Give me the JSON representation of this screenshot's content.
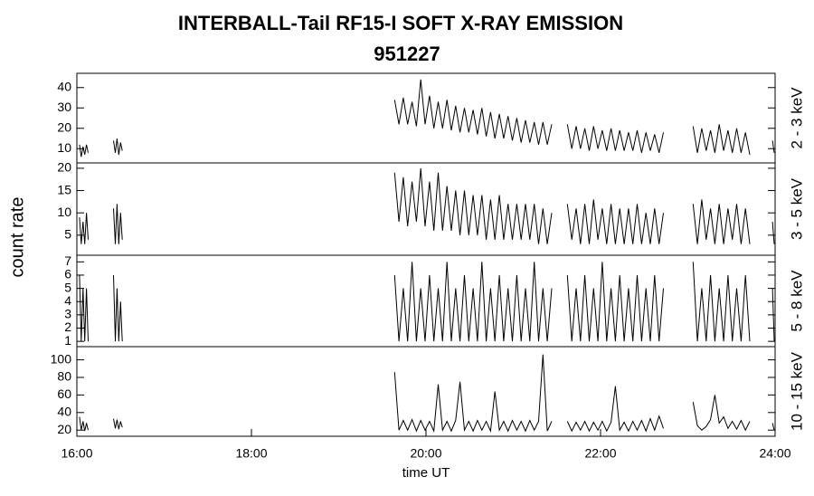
{
  "chart_data": {
    "type": "line",
    "title": "INTERBALL-Tail RF15-I SOFT X-RAY EMISSION",
    "subtitle": "951227",
    "xlabel": "time UT",
    "ylabel": "count rate",
    "color": "#000000",
    "xlim": [
      16,
      24
    ],
    "xticks": [
      {
        "value": 16,
        "label": "16:00"
      },
      {
        "value": 18,
        "label": "18:00"
      },
      {
        "value": 20,
        "label": "20:00"
      },
      {
        "value": 22,
        "label": "22:00"
      },
      {
        "value": 24,
        "label": "24:00"
      }
    ],
    "x": [
      16.03,
      16.05,
      16.07,
      16.09,
      16.11,
      16.13,
      16.3,
      16.42,
      16.44,
      16.46,
      16.48,
      16.5,
      16.52,
      18,
      19.64,
      19.69,
      19.74,
      19.79,
      19.84,
      19.89,
      19.94,
      19.99,
      20.04,
      20.09,
      20.14,
      20.19,
      20.24,
      20.29,
      20.34,
      20.39,
      20.44,
      20.49,
      20.54,
      20.59,
      20.64,
      20.69,
      20.74,
      20.79,
      20.84,
      20.89,
      20.94,
      20.99,
      21.04,
      21.09,
      21.14,
      21.19,
      21.24,
      21.29,
      21.34,
      21.39,
      21.44,
      21.54,
      21.62,
      21.67,
      21.72,
      21.77,
      21.82,
      21.87,
      21.92,
      21.97,
      22.02,
      22.07,
      22.12,
      22.17,
      22.22,
      22.27,
      22.32,
      22.37,
      22.42,
      22.47,
      22.52,
      22.57,
      22.62,
      22.67,
      22.72,
      22.9,
      23.06,
      23.11,
      23.16,
      23.21,
      23.26,
      23.31,
      23.36,
      23.41,
      23.46,
      23.51,
      23.56,
      23.61,
      23.66,
      23.71,
      23.85,
      23.97,
      23.99
    ],
    "panels": [
      {
        "name": "2 - 3 keV",
        "ylim": [
          3,
          47
        ],
        "yticks": [
          10,
          20,
          30,
          40
        ],
        "values": [
          12,
          6,
          11,
          7,
          12,
          8,
          null,
          14,
          8,
          15,
          7,
          13,
          9,
          null,
          34,
          22,
          35,
          22,
          33,
          21,
          44,
          22,
          36,
          20,
          33,
          20,
          34,
          19,
          31,
          18,
          30,
          18,
          29,
          17,
          30,
          16,
          28,
          15,
          27,
          15,
          26,
          14,
          25,
          13,
          24,
          13,
          23,
          12,
          23,
          12,
          22,
          null,
          22,
          10,
          21,
          10,
          20,
          9,
          21,
          10,
          19,
          9,
          20,
          9,
          19,
          9,
          18,
          9,
          19,
          8,
          18,
          9,
          17,
          8,
          18,
          null,
          21,
          8,
          20,
          9,
          19,
          8,
          22,
          9,
          19,
          8,
          20,
          8,
          18,
          7,
          null,
          14,
          8
        ]
      },
      {
        "name": "3 - 5 keV",
        "ylim": [
          0.5,
          21.2
        ],
        "yticks": [
          5,
          10,
          15,
          20
        ],
        "values": [
          9,
          3,
          8,
          3,
          10,
          4,
          null,
          11,
          3,
          12,
          3,
          10,
          4,
          null,
          19,
          8,
          18,
          7,
          17,
          8,
          20,
          7,
          17,
          6,
          19,
          6,
          16,
          6,
          15,
          5,
          15,
          5,
          14,
          5,
          14,
          4,
          13,
          4,
          14,
          4,
          12,
          4,
          12,
          4,
          12,
          4,
          12,
          3,
          11,
          3,
          10,
          null,
          12,
          4,
          11,
          3,
          12,
          3,
          13,
          4,
          11,
          3,
          12,
          3,
          11,
          3,
          11,
          3,
          12,
          3,
          10,
          3,
          11,
          3,
          10,
          null,
          12,
          3,
          13,
          4,
          11,
          3,
          12,
          3,
          11,
          4,
          12,
          3,
          11,
          3,
          null,
          8,
          3
        ]
      },
      {
        "name": "5 - 8 keV",
        "ylim": [
          0.6,
          7.5
        ],
        "yticks": [
          1,
          2,
          3,
          4,
          5,
          6,
          7
        ],
        "values": [
          6,
          1,
          5,
          1,
          5,
          1,
          null,
          6,
          1,
          5,
          1,
          4,
          1,
          null,
          6,
          1,
          5,
          1,
          7,
          1,
          5,
          1,
          6,
          1,
          5,
          1,
          7,
          1,
          5,
          1,
          6,
          1,
          5,
          1,
          7,
          1,
          5,
          1,
          6,
          1,
          5,
          1,
          6,
          1,
          5,
          1,
          7,
          1,
          5,
          1,
          5,
          null,
          6,
          1,
          5,
          1,
          6,
          1,
          5,
          1,
          7,
          1,
          5,
          1,
          6,
          1,
          5,
          1,
          6,
          1,
          5,
          1,
          6,
          1,
          5,
          null,
          7,
          1,
          5,
          1,
          6,
          1,
          5,
          1,
          6,
          1,
          5,
          1,
          6,
          1,
          null,
          5,
          1
        ]
      },
      {
        "name": "10 - 15 keV",
        "ylim": [
          13,
          115
        ],
        "yticks": [
          20,
          40,
          60,
          80,
          100
        ],
        "values": [
          35,
          20,
          30,
          19,
          28,
          20,
          null,
          33,
          22,
          32,
          21,
          30,
          23,
          null,
          86,
          20,
          31,
          20,
          32,
          19,
          31,
          20,
          30,
          19,
          72,
          20,
          30,
          19,
          31,
          75,
          20,
          30,
          19,
          31,
          20,
          30,
          19,
          64,
          20,
          30,
          19,
          31,
          20,
          30,
          19,
          31,
          20,
          30,
          106,
          19,
          30,
          null,
          30,
          19,
          29,
          20,
          30,
          19,
          29,
          20,
          30,
          19,
          29,
          70,
          20,
          29,
          19,
          30,
          20,
          31,
          19,
          33,
          20,
          36,
          22,
          null,
          52,
          25,
          20,
          24,
          32,
          60,
          28,
          35,
          22,
          30,
          21,
          31,
          20,
          30,
          null,
          28,
          20
        ]
      }
    ]
  }
}
